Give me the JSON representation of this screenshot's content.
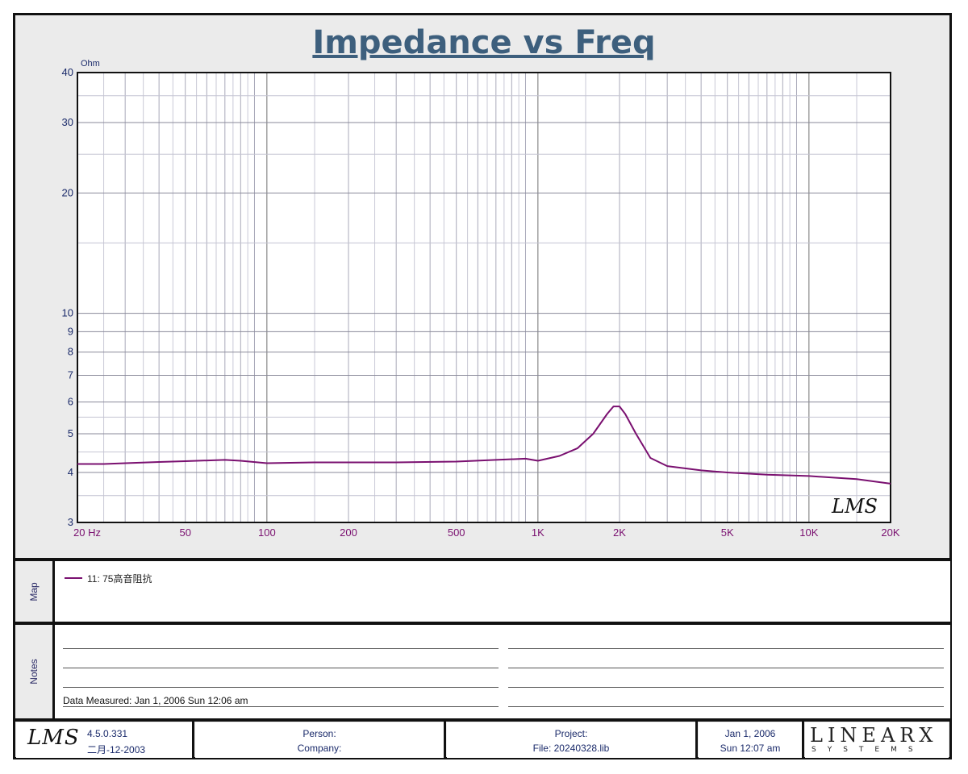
{
  "chart_data": {
    "type": "line",
    "title": "Impedance vs Freq",
    "ylabel": "Ohm",
    "xlabel": "",
    "x_scale": "log",
    "y_scale": "log",
    "xlim": [
      20,
      20000
    ],
    "ylim": [
      3,
      40
    ],
    "x_ticks": [
      {
        "v": 20,
        "label": "20  Hz"
      },
      {
        "v": 50,
        "label": "50"
      },
      {
        "v": 100,
        "label": "100"
      },
      {
        "v": 200,
        "label": "200"
      },
      {
        "v": 500,
        "label": "500"
      },
      {
        "v": 1000,
        "label": "1K"
      },
      {
        "v": 2000,
        "label": "2K"
      },
      {
        "v": 5000,
        "label": "5K"
      },
      {
        "v": 10000,
        "label": "10K"
      },
      {
        "v": 20000,
        "label": "20K"
      }
    ],
    "y_ticks": [
      {
        "v": 3,
        "label": "3"
      },
      {
        "v": 4,
        "label": "4"
      },
      {
        "v": 5,
        "label": "5"
      },
      {
        "v": 6,
        "label": "6"
      },
      {
        "v": 7,
        "label": "7"
      },
      {
        "v": 8,
        "label": "8"
      },
      {
        "v": 9,
        "label": "9"
      },
      {
        "v": 10,
        "label": "10"
      },
      {
        "v": 20,
        "label": "20"
      },
      {
        "v": 30,
        "label": "30"
      },
      {
        "v": 40,
        "label": "40"
      }
    ],
    "grid": true,
    "series": [
      {
        "name": "11: 75高音阻抗",
        "color": "#7a1070",
        "x": [
          20,
          25,
          30,
          40,
          50,
          70,
          80,
          100,
          150,
          200,
          300,
          500,
          700,
          900,
          1000,
          1200,
          1400,
          1600,
          1800,
          1900,
          2000,
          2100,
          2300,
          2600,
          3000,
          4000,
          5000,
          7000,
          10000,
          15000,
          20000
        ],
        "y": [
          4.2,
          4.2,
          4.22,
          4.25,
          4.27,
          4.3,
          4.28,
          4.22,
          4.24,
          4.24,
          4.24,
          4.26,
          4.3,
          4.33,
          4.28,
          4.4,
          4.6,
          5.0,
          5.6,
          5.85,
          5.85,
          5.6,
          5.0,
          4.35,
          4.15,
          4.05,
          4.0,
          3.95,
          3.92,
          3.85,
          3.75
        ]
      }
    ],
    "watermark": "LMS"
  },
  "panels": {
    "map_label": "Map",
    "notes_label": "Notes",
    "legend_entry": "11: 75高音阻抗",
    "data_measured": "Data Measured: Jan  1, 2006  Sun 12:06 am"
  },
  "footer": {
    "logo": "LMS",
    "version": "4.5.0.331",
    "build_date": "二月-12-2003",
    "person_label": "Person:",
    "company_label": "Company:",
    "project_label": "Project:",
    "file_label": "File: 20240328.lib",
    "date": "Jan  1, 2006",
    "time": "Sun 12:07 am",
    "brand": "LINEARX",
    "brand_sub": "SYSTEMS"
  }
}
